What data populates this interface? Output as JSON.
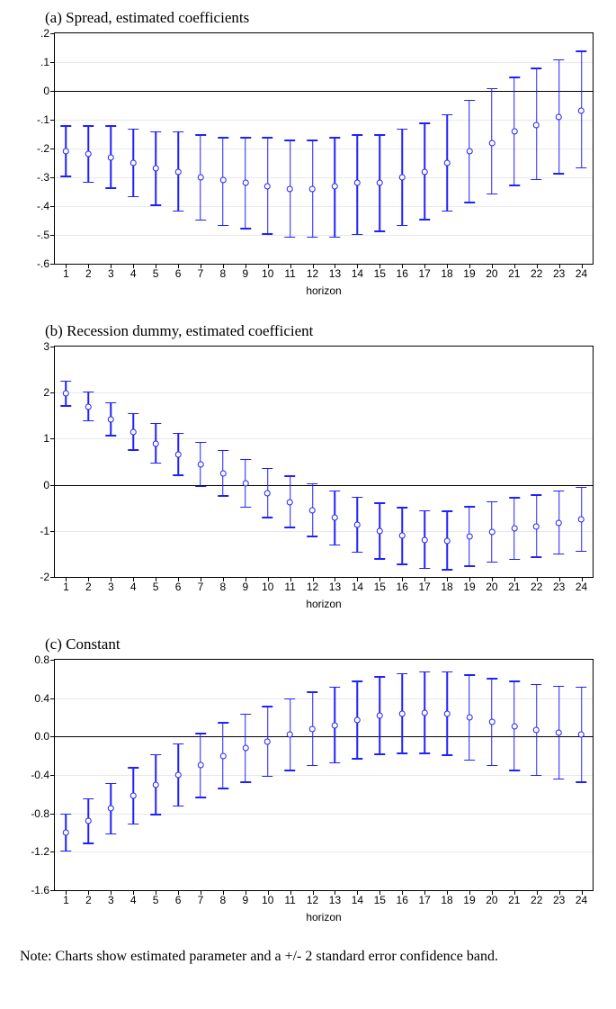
{
  "colors": {
    "bar": "#2020ff",
    "grid": "#e8e8e8",
    "axis": "#000000",
    "bg": "#ffffff"
  },
  "note": "Note: Charts show estimated parameter and a +/- 2 standard error confidence band.",
  "xlabel": "horizon",
  "panels": [
    {
      "id": "a",
      "title": "(a)  Spread, estimated coefficients",
      "ylim": [
        -0.6,
        0.2
      ],
      "ystep": 0.1,
      "ytick_format": "dot1",
      "data": [
        {
          "x": 1,
          "y": -0.21,
          "lo": -0.3,
          "hi": -0.12
        },
        {
          "x": 2,
          "y": -0.22,
          "lo": -0.32,
          "hi": -0.12
        },
        {
          "x": 3,
          "y": -0.23,
          "lo": -0.34,
          "hi": -0.12
        },
        {
          "x": 4,
          "y": -0.25,
          "lo": -0.37,
          "hi": -0.13
        },
        {
          "x": 5,
          "y": -0.27,
          "lo": -0.4,
          "hi": -0.14
        },
        {
          "x": 6,
          "y": -0.28,
          "lo": -0.42,
          "hi": -0.14
        },
        {
          "x": 7,
          "y": -0.3,
          "lo": -0.45,
          "hi": -0.15
        },
        {
          "x": 8,
          "y": -0.31,
          "lo": -0.47,
          "hi": -0.16
        },
        {
          "x": 9,
          "y": -0.32,
          "lo": -0.48,
          "hi": -0.16
        },
        {
          "x": 10,
          "y": -0.33,
          "lo": -0.5,
          "hi": -0.16
        },
        {
          "x": 11,
          "y": -0.34,
          "lo": -0.51,
          "hi": -0.17
        },
        {
          "x": 12,
          "y": -0.34,
          "lo": -0.51,
          "hi": -0.17
        },
        {
          "x": 13,
          "y": -0.33,
          "lo": -0.51,
          "hi": -0.16
        },
        {
          "x": 14,
          "y": -0.32,
          "lo": -0.5,
          "hi": -0.15
        },
        {
          "x": 15,
          "y": -0.32,
          "lo": -0.49,
          "hi": -0.15
        },
        {
          "x": 16,
          "y": -0.3,
          "lo": -0.47,
          "hi": -0.13
        },
        {
          "x": 17,
          "y": -0.28,
          "lo": -0.45,
          "hi": -0.11
        },
        {
          "x": 18,
          "y": -0.25,
          "lo": -0.42,
          "hi": -0.08
        },
        {
          "x": 19,
          "y": -0.21,
          "lo": -0.39,
          "hi": -0.03
        },
        {
          "x": 20,
          "y": -0.18,
          "lo": -0.36,
          "hi": 0.01
        },
        {
          "x": 21,
          "y": -0.14,
          "lo": -0.33,
          "hi": 0.05
        },
        {
          "x": 22,
          "y": -0.12,
          "lo": -0.31,
          "hi": 0.08
        },
        {
          "x": 23,
          "y": -0.09,
          "lo": -0.29,
          "hi": 0.11
        },
        {
          "x": 24,
          "y": -0.07,
          "lo": -0.27,
          "hi": 0.14
        }
      ]
    },
    {
      "id": "b",
      "title": "(b)  Recession dummy, estimated coefficient",
      "ylim": [
        -2,
        3
      ],
      "ystep": 1,
      "ytick_format": "int",
      "data": [
        {
          "x": 1,
          "y": 1.98,
          "lo": 1.7,
          "hi": 2.26
        },
        {
          "x": 2,
          "y": 1.7,
          "lo": 1.37,
          "hi": 2.03
        },
        {
          "x": 3,
          "y": 1.42,
          "lo": 1.05,
          "hi": 1.79
        },
        {
          "x": 4,
          "y": 1.15,
          "lo": 0.74,
          "hi": 1.56
        },
        {
          "x": 5,
          "y": 0.9,
          "lo": 0.46,
          "hi": 1.34
        },
        {
          "x": 6,
          "y": 0.66,
          "lo": 0.19,
          "hi": 1.13
        },
        {
          "x": 7,
          "y": 0.44,
          "lo": -0.05,
          "hi": 0.93
        },
        {
          "x": 8,
          "y": 0.25,
          "lo": -0.26,
          "hi": 0.76
        },
        {
          "x": 9,
          "y": 0.03,
          "lo": -0.5,
          "hi": 0.56
        },
        {
          "x": 10,
          "y": -0.18,
          "lo": -0.73,
          "hi": 0.37
        },
        {
          "x": 11,
          "y": -0.37,
          "lo": -0.94,
          "hi": 0.2
        },
        {
          "x": 12,
          "y": -0.55,
          "lo": -1.14,
          "hi": 0.04
        },
        {
          "x": 13,
          "y": -0.72,
          "lo": -1.32,
          "hi": -0.12
        },
        {
          "x": 14,
          "y": -0.87,
          "lo": -1.48,
          "hi": -0.26
        },
        {
          "x": 15,
          "y": -1.0,
          "lo": -1.62,
          "hi": -0.38
        },
        {
          "x": 16,
          "y": -1.11,
          "lo": -1.74,
          "hi": -0.48
        },
        {
          "x": 17,
          "y": -1.19,
          "lo": -1.83,
          "hi": -0.55
        },
        {
          "x": 18,
          "y": -1.21,
          "lo": -1.86,
          "hi": -0.56
        },
        {
          "x": 19,
          "y": -1.12,
          "lo": -1.78,
          "hi": -0.46
        },
        {
          "x": 20,
          "y": -1.02,
          "lo": -1.69,
          "hi": -0.35
        },
        {
          "x": 21,
          "y": -0.95,
          "lo": -1.63,
          "hi": -0.27
        },
        {
          "x": 22,
          "y": -0.9,
          "lo": -1.59,
          "hi": -0.21
        },
        {
          "x": 23,
          "y": -0.82,
          "lo": -1.52,
          "hi": -0.12
        },
        {
          "x": 24,
          "y": -0.75,
          "lo": -1.46,
          "hi": -0.04
        }
      ]
    },
    {
      "id": "c",
      "title": "(c)  Constant",
      "ylim": [
        -1.6,
        0.8
      ],
      "ystep": 0.4,
      "ytick_format": "dot1alt",
      "data": [
        {
          "x": 1,
          "y": -1.0,
          "lo": -1.2,
          "hi": -0.8
        },
        {
          "x": 2,
          "y": -0.88,
          "lo": -1.12,
          "hi": -0.64
        },
        {
          "x": 3,
          "y": -0.75,
          "lo": -1.02,
          "hi": -0.48
        },
        {
          "x": 4,
          "y": -0.62,
          "lo": -0.92,
          "hi": -0.32
        },
        {
          "x": 5,
          "y": -0.5,
          "lo": -0.82,
          "hi": -0.18
        },
        {
          "x": 6,
          "y": -0.4,
          "lo": -0.73,
          "hi": -0.07
        },
        {
          "x": 7,
          "y": -0.3,
          "lo": -0.64,
          "hi": 0.04
        },
        {
          "x": 8,
          "y": -0.2,
          "lo": -0.55,
          "hi": 0.15
        },
        {
          "x": 9,
          "y": -0.12,
          "lo": -0.48,
          "hi": 0.24
        },
        {
          "x": 10,
          "y": -0.05,
          "lo": -0.42,
          "hi": 0.32
        },
        {
          "x": 11,
          "y": 0.02,
          "lo": -0.36,
          "hi": 0.4
        },
        {
          "x": 12,
          "y": 0.08,
          "lo": -0.31,
          "hi": 0.47
        },
        {
          "x": 13,
          "y": 0.12,
          "lo": -0.28,
          "hi": 0.52
        },
        {
          "x": 14,
          "y": 0.17,
          "lo": -0.24,
          "hi": 0.58
        },
        {
          "x": 15,
          "y": 0.22,
          "lo": -0.19,
          "hi": 0.63
        },
        {
          "x": 16,
          "y": 0.24,
          "lo": -0.18,
          "hi": 0.66
        },
        {
          "x": 17,
          "y": 0.25,
          "lo": -0.18,
          "hi": 0.68
        },
        {
          "x": 18,
          "y": 0.24,
          "lo": -0.2,
          "hi": 0.68
        },
        {
          "x": 19,
          "y": 0.2,
          "lo": -0.25,
          "hi": 0.65
        },
        {
          "x": 20,
          "y": 0.15,
          "lo": -0.31,
          "hi": 0.61
        },
        {
          "x": 21,
          "y": 0.11,
          "lo": -0.36,
          "hi": 0.58
        },
        {
          "x": 22,
          "y": 0.07,
          "lo": -0.41,
          "hi": 0.55
        },
        {
          "x": 23,
          "y": 0.04,
          "lo": -0.45,
          "hi": 0.53
        },
        {
          "x": 24,
          "y": 0.02,
          "lo": -0.48,
          "hi": 0.52
        }
      ]
    }
  ]
}
